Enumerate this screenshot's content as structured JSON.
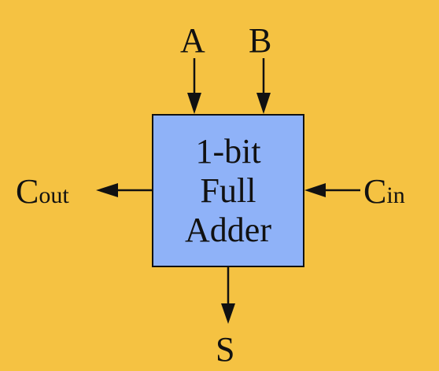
{
  "block": {
    "lines": [
      "1-bit",
      "Full",
      "Adder"
    ]
  },
  "inputs": {
    "a": "A",
    "b": "B",
    "cin_main": "C",
    "cin_sub": "in"
  },
  "outputs": {
    "s": "S",
    "cout_main": "C",
    "cout_sub": "out"
  },
  "colors": {
    "background": "#f5c242",
    "block_fill": "#8fb2f8",
    "stroke": "#111111"
  }
}
